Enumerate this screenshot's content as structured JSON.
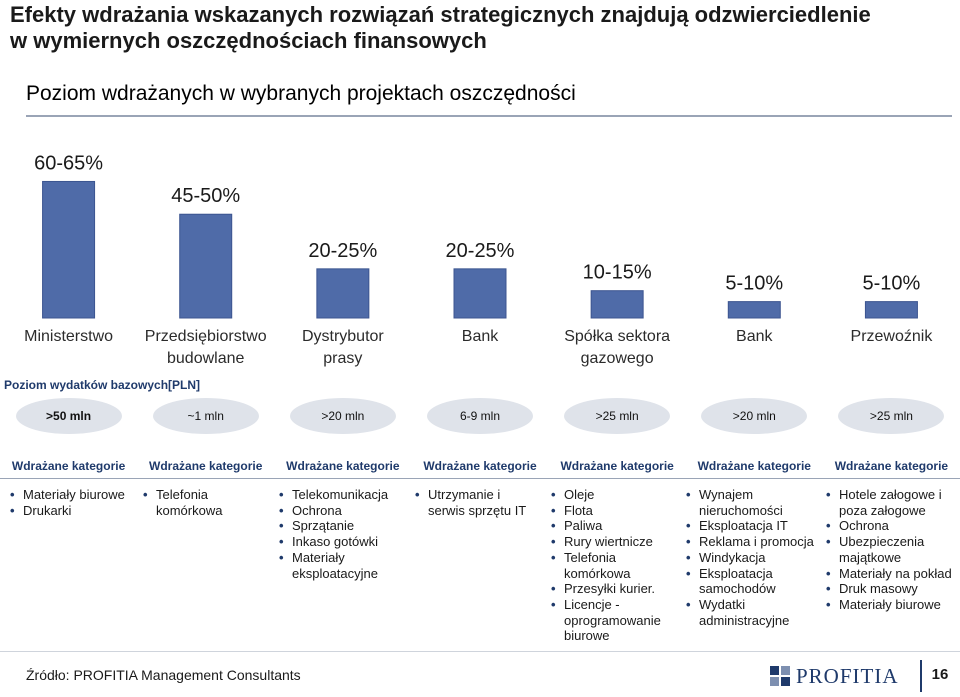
{
  "title": {
    "line1": "Efekty wdrażania wskazanych rozwiązań strategicznych znajdują odzwierciedlenie",
    "line2": "w wymiernych oszczędnościach finansowych"
  },
  "subtitle": "Poziom wdrażanych w wybranych projektach oszczędności",
  "colors": {
    "bar": "#4f6ba8",
    "bar_border": "#3c5590",
    "accent": "#1f3a6b",
    "bubble": "#dfe3ea"
  },
  "chart_data": {
    "type": "bar",
    "categories": [
      "Ministerstwo",
      "Przedsiębiorstwo budowlane",
      "Dystrybutor prasy",
      "Bank",
      "Spółka sektora gazowego",
      "Bank",
      "Przewoźnik"
    ],
    "category_lines": [
      [
        "Ministerstwo"
      ],
      [
        "Przedsiębiorstwo",
        "budowlane"
      ],
      [
        "Dystrybutor",
        "prasy"
      ],
      [
        "Bank"
      ],
      [
        "Spółka sektora",
        "gazowego"
      ],
      [
        "Bank"
      ],
      [
        "Przewoźnik"
      ]
    ],
    "ranges": [
      [
        60,
        65
      ],
      [
        45,
        50
      ],
      [
        20,
        25
      ],
      [
        20,
        25
      ],
      [
        10,
        15
      ],
      [
        5,
        10
      ],
      [
        5,
        10
      ]
    ],
    "data_labels": [
      "60-65%",
      "45-50%",
      "20-25%",
      "20-25%",
      "10-15%",
      "5-10%",
      "5-10%"
    ],
    "values": [
      62.5,
      47.5,
      22.5,
      22.5,
      12.5,
      7.5,
      7.5
    ],
    "ylim": [
      0,
      65
    ],
    "grid": false,
    "legend": "none"
  },
  "baseline": {
    "label": "Poziom  wydatków bazowych[PLN]",
    "values": [
      ">50 mln",
      "~1 mln",
      ">20 mln",
      "6-9 mln",
      ">25 mln",
      ">20 mln",
      ">25 mln"
    ]
  },
  "categories_header": "Wdrażane kategorie",
  "category_lists": [
    [
      "Materiały biurowe",
      "Drukarki"
    ],
    [
      "Telefonia komórkowa"
    ],
    [
      "Telekomunikacja",
      "Ochrona",
      "Sprzątanie",
      "Inkaso gotówki",
      "Materiały eksploatacyjne"
    ],
    [
      "Utrzymanie i serwis sprzętu IT"
    ],
    [
      "Oleje",
      "Flota",
      "Paliwa",
      "Rury wiertnicze",
      "Telefonia komórkowa",
      "Przesyłki kurier.",
      "Licencje - oprogramowanie biurowe"
    ],
    [
      "Wynajem nieruchomości",
      "Eksploatacja IT",
      "Reklama i promocja",
      "Windykacja",
      "Eksploatacja samochodów",
      "Wydatki administracyjne"
    ],
    [
      "Hotele załogowe i poza załogowe",
      "Ochrona",
      "Ubezpieczenia majątkowe",
      "Materiały na pokład",
      "Druk masowy",
      "Materiały biurowe"
    ]
  ],
  "footer": {
    "source": "Źródło: PROFITIA Management Consultants",
    "logo_text": "PROFITIA",
    "page_number": "16"
  }
}
